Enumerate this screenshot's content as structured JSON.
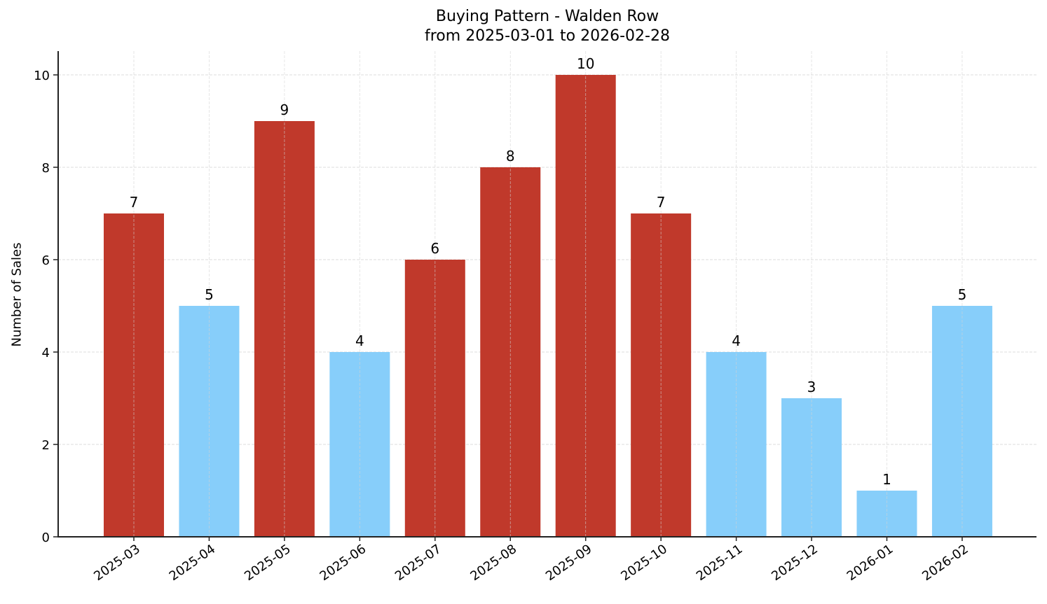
{
  "chart_data": {
    "type": "bar",
    "title": "Buying Pattern - Walden Row",
    "subtitle": "from 2025-03-01 to 2026-02-28",
    "xlabel": "",
    "ylabel": "Number of Sales",
    "categories": [
      "2025-03",
      "2025-04",
      "2025-05",
      "2025-06",
      "2025-07",
      "2025-08",
      "2025-09",
      "2025-10",
      "2025-11",
      "2025-12",
      "2026-01",
      "2026-02"
    ],
    "values": [
      7,
      5,
      9,
      4,
      6,
      8,
      10,
      7,
      4,
      3,
      1,
      5
    ],
    "bar_colors": [
      "#c0392b",
      "#87cefa",
      "#c0392b",
      "#87cefa",
      "#c0392b",
      "#c0392b",
      "#c0392b",
      "#c0392b",
      "#87cefa",
      "#87cefa",
      "#87cefa",
      "#87cefa"
    ],
    "data_labels": [
      "7",
      "5",
      "9",
      "4",
      "6",
      "8",
      "10",
      "7",
      "4",
      "3",
      "1",
      "5"
    ],
    "yticks": [
      0,
      2,
      4,
      6,
      8,
      10
    ],
    "ylim": [
      0,
      10.5
    ],
    "grid": true,
    "legend": null,
    "xtick_rotation": 35
  },
  "colors": {
    "high": "#c0392b",
    "low": "#87cefa",
    "grid": "#d3d3d3",
    "axis": "#222222"
  }
}
